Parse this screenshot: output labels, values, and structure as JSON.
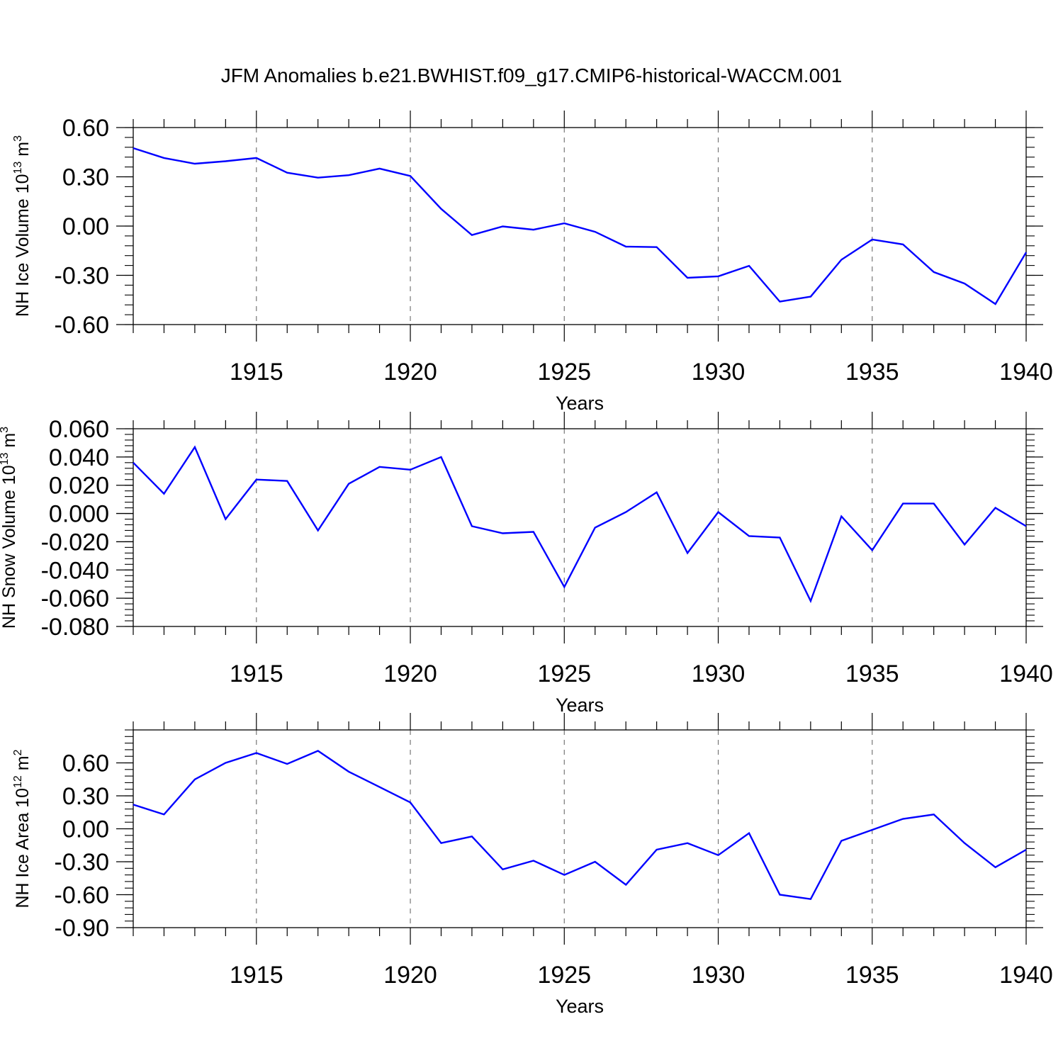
{
  "title": "JFM Anomalies b.e21.BWHIST.f09_g17.CMIP6-historical-WACCM.001",
  "colors": {
    "series": "#0000ff",
    "axis": "#000000",
    "grid": "#777777",
    "background": "#ffffff"
  },
  "chart_data": [
    {
      "type": "line",
      "panel": "ice-volume",
      "ylabel": {
        "text": "NH Ice Volume 10",
        "sup1": "13",
        "unit": " m",
        "sup2": "3"
      },
      "xlabel": "Years",
      "xlim": [
        1911,
        1940
      ],
      "ylim": [
        -0.6,
        0.6
      ],
      "yticks": [
        -0.6,
        -0.3,
        0.0,
        0.3,
        0.6
      ],
      "yticklabels": [
        "-0.60",
        "-0.30",
        "0.00",
        "0.30",
        "0.60"
      ],
      "xticks": [
        1915,
        1920,
        1925,
        1930,
        1935,
        1940
      ],
      "xticklabels": [
        "1915",
        "1920",
        "1925",
        "1930",
        "1935",
        "1940"
      ],
      "grid": "vertical dashed at major x ticks",
      "x": [
        1911,
        1912,
        1913,
        1914,
        1915,
        1916,
        1917,
        1918,
        1919,
        1920,
        1921,
        1922,
        1923,
        1924,
        1925,
        1926,
        1927,
        1928,
        1929,
        1930,
        1931,
        1932,
        1933,
        1934,
        1935,
        1936,
        1937,
        1938,
        1939,
        1940
      ],
      "values": [
        0.475,
        0.415,
        0.38,
        0.395,
        0.415,
        0.325,
        0.295,
        0.31,
        0.35,
        0.305,
        0.105,
        -0.055,
        -0.002,
        -0.022,
        0.017,
        -0.035,
        -0.125,
        -0.128,
        -0.315,
        -0.306,
        -0.242,
        -0.46,
        -0.43,
        -0.205,
        -0.082,
        -0.112,
        -0.28,
        -0.35,
        -0.475,
        -0.16
      ]
    },
    {
      "type": "line",
      "panel": "snow-volume",
      "ylabel": {
        "text": "NH Snow Volume 10",
        "sup1": "13",
        "unit": " m",
        "sup2": "3"
      },
      "xlabel": "Years",
      "xlim": [
        1911,
        1940
      ],
      "ylim": [
        -0.08,
        0.06
      ],
      "yticks": [
        -0.08,
        -0.06,
        -0.04,
        -0.02,
        0.0,
        0.02,
        0.04,
        0.06
      ],
      "yticklabels": [
        "-0.080",
        "-0.060",
        "-0.040",
        "-0.020",
        "0.000",
        "0.020",
        "0.040",
        "0.060"
      ],
      "xticks": [
        1915,
        1920,
        1925,
        1930,
        1935,
        1940
      ],
      "xticklabels": [
        "1915",
        "1920",
        "1925",
        "1930",
        "1935",
        "1940"
      ],
      "grid": "vertical dashed at major x ticks",
      "x": [
        1911,
        1912,
        1913,
        1914,
        1915,
        1916,
        1917,
        1918,
        1919,
        1920,
        1921,
        1922,
        1923,
        1924,
        1925,
        1926,
        1927,
        1928,
        1929,
        1930,
        1931,
        1932,
        1933,
        1934,
        1935,
        1936,
        1937,
        1938,
        1939,
        1940
      ],
      "values": [
        0.036,
        0.014,
        0.047,
        -0.004,
        0.024,
        0.023,
        -0.012,
        0.021,
        0.033,
        0.031,
        0.04,
        -0.009,
        -0.014,
        -0.013,
        -0.052,
        -0.01,
        0.001,
        0.015,
        -0.028,
        0.001,
        -0.016,
        -0.017,
        -0.062,
        -0.002,
        -0.026,
        0.007,
        0.007,
        -0.022,
        0.004,
        -0.009
      ]
    },
    {
      "type": "line",
      "panel": "ice-area",
      "ylabel": {
        "text": "NH Ice Area 10",
        "sup1": "12",
        "unit": " m",
        "sup2": "2"
      },
      "xlabel": "Years",
      "xlim": [
        1911,
        1940
      ],
      "ylim": [
        -0.9,
        0.9
      ],
      "yticks": [
        -0.9,
        -0.6,
        -0.3,
        0.0,
        0.3,
        0.6
      ],
      "yticklabels": [
        "-0.90",
        "-0.60",
        "-0.30",
        "0.00",
        "0.30",
        "0.60"
      ],
      "xticks": [
        1915,
        1920,
        1925,
        1930,
        1935,
        1940
      ],
      "xticklabels": [
        "1915",
        "1920",
        "1925",
        "1930",
        "1935",
        "1940"
      ],
      "grid": "vertical dashed at major x ticks",
      "x": [
        1911,
        1912,
        1913,
        1914,
        1915,
        1916,
        1917,
        1918,
        1919,
        1920,
        1921,
        1922,
        1923,
        1924,
        1925,
        1926,
        1927,
        1928,
        1929,
        1930,
        1931,
        1932,
        1933,
        1934,
        1935,
        1936,
        1937,
        1938,
        1939,
        1940
      ],
      "values": [
        0.22,
        0.13,
        0.45,
        0.6,
        0.69,
        0.59,
        0.71,
        0.52,
        0.38,
        0.24,
        -0.13,
        -0.07,
        -0.37,
        -0.29,
        -0.42,
        -0.3,
        -0.51,
        -0.19,
        -0.13,
        -0.24,
        -0.04,
        -0.6,
        -0.64,
        -0.11,
        -0.01,
        0.09,
        0.13,
        -0.13,
        -0.35,
        -0.19
      ]
    }
  ]
}
